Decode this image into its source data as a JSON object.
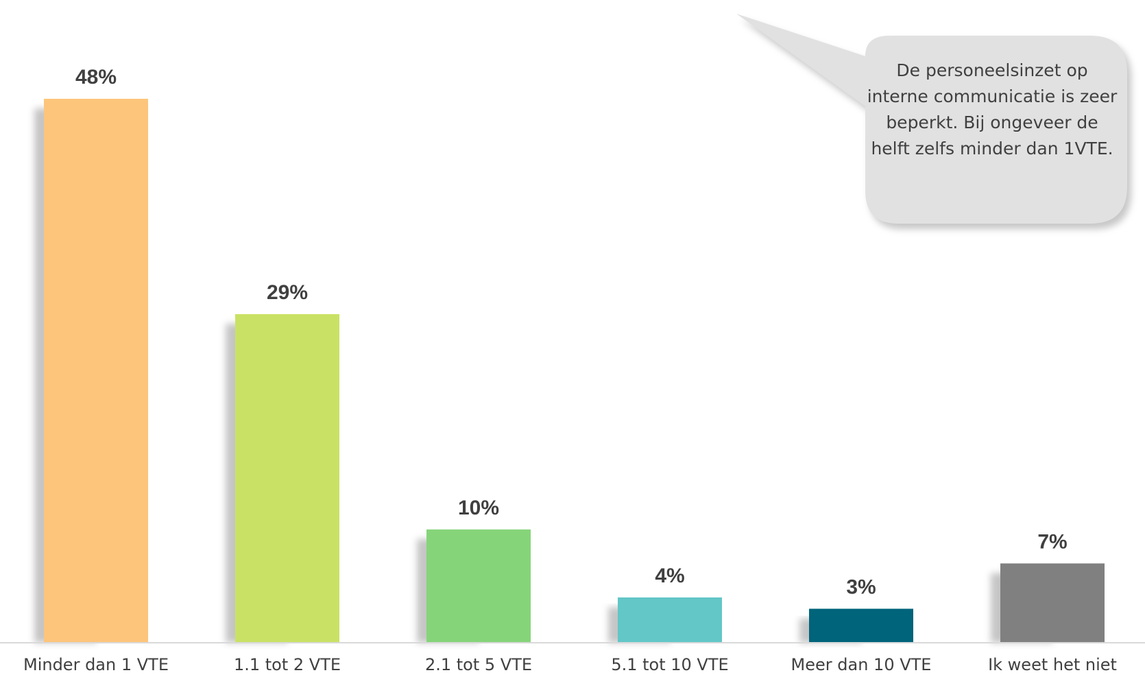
{
  "chart_data": {
    "type": "bar",
    "categories": [
      "Minder dan 1 VTE",
      "1.1 tot 2 VTE",
      "2.1 tot 5 VTE",
      "5.1 tot 10 VTE",
      "Meer dan 10 VTE",
      "Ik weet het niet"
    ],
    "values": [
      48,
      29,
      10,
      4,
      3,
      7
    ],
    "value_labels": [
      "48%",
      "29%",
      "10%",
      "4%",
      "3%",
      "7%"
    ],
    "colors": [
      "#fdc57b",
      "#c9e265",
      "#86d47a",
      "#63c6c7",
      "#00647b",
      "#808080"
    ],
    "ylim": [
      0,
      48
    ],
    "grid": false,
    "legend": "none",
    "title": "",
    "xlabel": "",
    "ylabel": ""
  },
  "callout": {
    "text": "De personeelsinzet op interne communicatie is zeer beperkt. Bij ongeveer de helft zelfs minder dan 1VTE."
  }
}
